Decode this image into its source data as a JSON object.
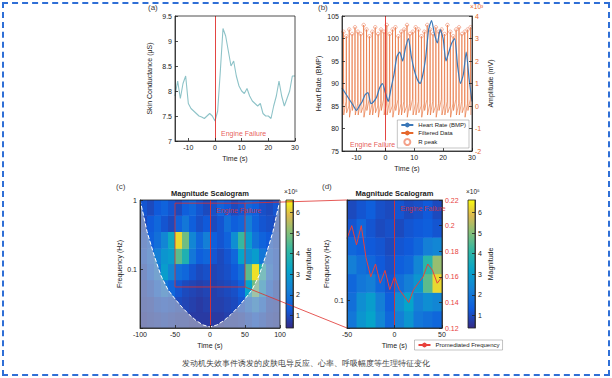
{
  "caption": "发动机失效事件诱发的皮肤电导反应、心率、呼吸幅度等生理特征变化",
  "chart_data": [
    {
      "panel": "(a)",
      "type": "line",
      "xlabel": "Time (s)",
      "ylabel": "Skin Conductance (μS)",
      "x": [
        -15,
        -14,
        -13,
        -12,
        -11,
        -10,
        -9,
        -8,
        -7,
        -6,
        -5,
        -4,
        -3,
        -2,
        -1,
        0,
        1,
        2,
        3,
        4,
        5,
        6,
        7,
        8,
        9,
        10,
        11,
        12,
        13,
        14,
        15,
        16,
        17,
        18,
        19,
        20,
        21,
        22,
        23,
        24,
        25,
        26,
        27,
        28,
        29,
        30
      ],
      "values": [
        7.9,
        8.2,
        7.85,
        8.15,
        8.3,
        7.75,
        7.65,
        7.6,
        7.55,
        7.5,
        7.48,
        7.45,
        7.5,
        7.55,
        7.5,
        7.4,
        7.6,
        8.4,
        9.25,
        9.1,
        8.8,
        8.5,
        8.6,
        8.3,
        8.1,
        8.0,
        7.95,
        8.05,
        7.9,
        7.8,
        7.75,
        7.7,
        7.75,
        7.55,
        7.5,
        7.5,
        7.45,
        7.7,
        7.9,
        8.2,
        7.9,
        7.7,
        7.85,
        8.0,
        8.3,
        8.3
      ],
      "color": "#8ec3c8",
      "xlim": [
        -15,
        30
      ],
      "xticks": [
        -10,
        0,
        10,
        20,
        30
      ],
      "ylim": [
        7,
        9.5
      ],
      "yticks": [
        7,
        7.5,
        8,
        8.5,
        9,
        9.5
      ],
      "grid": false,
      "annotations": [
        {
          "text": "Engine Failure",
          "x": 0
        }
      ]
    },
    {
      "panel": "(b)",
      "type": "line",
      "xlabel": "Time (s)",
      "ylabel": "Heart Rate (BMP)",
      "y2label": "Amplitude (mV)",
      "y2_multiplier": "×10³",
      "xlim": [
        -15,
        30
      ],
      "xticks": [
        -10,
        0,
        10,
        20,
        30
      ],
      "ylim": [
        75,
        105
      ],
      "yticks": [
        75,
        80,
        85,
        90,
        95,
        100,
        105
      ],
      "y2lim": [
        -2,
        4
      ],
      "y2ticks": [
        -2,
        -1,
        0,
        1,
        2,
        3,
        4
      ],
      "grid": false,
      "legend": "lower right",
      "annotations": [
        {
          "text": "Engine Failure",
          "x": 0
        }
      ],
      "series": [
        {
          "name": "Heart Rate (BMP)",
          "type": "line",
          "color": "#3b78b8",
          "x": [
            -15,
            -14,
            -13,
            -12,
            -11,
            -10,
            -9,
            -8,
            -7,
            -6,
            -5,
            -4,
            -3,
            -2,
            -1,
            0,
            1,
            2,
            3,
            4,
            5,
            6,
            7,
            8,
            9,
            10,
            11,
            12,
            13,
            14,
            15,
            16,
            17,
            18,
            19,
            20,
            21,
            22,
            23,
            24,
            25,
            26,
            27,
            28,
            29,
            30
          ],
          "values": [
            89,
            88,
            87,
            86,
            85,
            84,
            85,
            86,
            87.5,
            88,
            85.5,
            86,
            87,
            89,
            90,
            88,
            86,
            89,
            92,
            96,
            97,
            95,
            98,
            100,
            96,
            93,
            91,
            90,
            92,
            96,
            102,
            104,
            101,
            99,
            102,
            100,
            95,
            97,
            99,
            100,
            94,
            90,
            92,
            97,
            91,
            86
          ]
        },
        {
          "name": "Filtered Data",
          "type": "line",
          "color": "#e5672c",
          "axis": "y2",
          "x": [
            -14.6,
            -14.5,
            -14.4,
            -13.6,
            -13.5,
            -13.4,
            -12.6,
            -12.5,
            -12.4,
            -11.6,
            -11.5,
            -11.4,
            -10.6,
            -10.5,
            -10.4,
            -9.6,
            -9.5,
            -9.4,
            -8.6,
            -8.5,
            -8.4,
            -7.6,
            -7.5,
            -7.4,
            -6.6,
            -6.5,
            -6.4,
            -5.6,
            -5.5,
            -5.4,
            -4.6,
            -4.5,
            -4.4,
            -3.6,
            -3.5,
            -3.4,
            -2.6,
            -2.5,
            -2.4,
            -1.6,
            -1.5,
            -1.4,
            -0.6,
            -0.5,
            -0.4,
            0.4,
            0.5,
            0.6,
            1.4,
            1.5,
            1.6,
            2.4,
            2.5,
            2.6,
            3.4,
            3.5,
            3.6,
            4.4,
            4.5,
            4.6,
            5.4,
            5.5,
            5.6,
            6.4,
            6.5,
            6.6,
            7.4,
            7.5,
            7.6,
            8.4,
            8.5,
            8.6,
            9.4,
            9.5,
            9.6,
            10.4,
            10.5,
            10.6,
            11.4,
            11.5,
            11.6,
            12.4,
            12.5,
            12.6,
            13.4,
            13.5,
            13.6,
            14.4,
            14.5,
            14.6,
            15.4,
            15.5,
            15.6,
            16.4,
            16.5,
            16.6,
            17.4,
            17.5,
            17.6,
            18.4,
            18.5,
            18.6,
            19.4,
            19.5,
            19.6,
            20.4,
            20.5,
            20.6,
            21.4,
            21.5,
            21.6,
            22.4,
            22.5,
            22.6,
            23.4,
            23.5,
            23.6,
            24.4,
            24.5,
            24.6,
            25.4,
            25.5,
            25.6,
            26.4,
            26.5,
            26.6,
            27.4,
            27.5,
            27.6,
            28.4,
            28.5,
            28.6,
            29.4,
            29.5,
            29.6
          ],
          "values": [
            0.1,
            3.3,
            -0.4,
            0.2,
            3.1,
            -0.3,
            0,
            3.4,
            -0.5,
            0.1,
            3.2,
            -0.2,
            0.3,
            3.5,
            -0.4,
            0.1,
            3.3,
            -0.4,
            0.2,
            3.2,
            -0.3,
            0,
            3.6,
            -0.5,
            0.1,
            3.4,
            -0.2,
            0.3,
            3.1,
            -0.4,
            0.1,
            3.3,
            -0.4,
            0.2,
            3.5,
            -0.3,
            0,
            3.2,
            -0.5,
            0.1,
            3.4,
            -0.2,
            0.3,
            3.3,
            -0.4,
            0.1,
            3.6,
            -0.4,
            0.2,
            3.2,
            -0.3,
            0,
            3.4,
            -0.5,
            0.1,
            3.5,
            -0.2,
            0.3,
            3.1,
            -0.4,
            0.1,
            3.3,
            -0.4,
            0.2,
            3.4,
            -0.3,
            0,
            3.6,
            -0.5,
            0.1,
            3.2,
            -0.2,
            0.3,
            3.3,
            -0.4,
            0.1,
            3.5,
            -0.4,
            0.2,
            3.4,
            -0.3,
            0,
            3.1,
            -0.5,
            0.1,
            3.3,
            -0.2,
            0.3,
            3.6,
            -0.4,
            0.1,
            3.4,
            -0.4,
            0.2,
            3.2,
            -0.3,
            0,
            3.5,
            -0.5,
            0.1,
            3.3,
            -0.2,
            0.3,
            3.4,
            -0.4,
            0.1,
            3.2,
            -0.4,
            0.2,
            3.6,
            -0.3,
            0,
            3.3,
            -0.5,
            0.1,
            3.1,
            -0.2,
            0.3,
            3.4,
            -0.4,
            0.1,
            3.5,
            -0.4,
            0.2,
            3.2,
            -0.3,
            0,
            3.3,
            -0.5,
            0.1,
            3.4,
            -0.2,
            0.3,
            3.5,
            -0.4
          ]
        },
        {
          "name": "R peak",
          "type": "scatter",
          "marker": "circle",
          "color": "#f08a6c",
          "axis": "y2",
          "x": [
            -14.5,
            -13.5,
            -12.5,
            -11.5,
            -10.5,
            -9.5,
            -8.5,
            -7.5,
            -6.5,
            -5.5,
            -4.5,
            -3.5,
            -2.5,
            -1.5,
            -0.5,
            0.5,
            1.5,
            2.5,
            3.5,
            4.5,
            5.5,
            6.5,
            7.5,
            8.5,
            9.5,
            10.5,
            11.5,
            12.5,
            13.5,
            14.5,
            15.5,
            16.5,
            17.5,
            18.5,
            19.5,
            20.5,
            21.5,
            22.5,
            23.5,
            24.5,
            25.5,
            26.5,
            27.5,
            28.5,
            29.5
          ],
          "values": [
            3.3,
            3.1,
            3.4,
            3.2,
            3.5,
            3.3,
            3.2,
            3.6,
            3.4,
            3.1,
            3.3,
            3.5,
            3.2,
            3.4,
            3.3,
            3.6,
            3.2,
            3.4,
            3.5,
            3.1,
            3.3,
            3.4,
            3.6,
            3.2,
            3.3,
            3.5,
            3.4,
            3.1,
            3.3,
            3.6,
            3.4,
            3.2,
            3.5,
            3.3,
            3.4,
            3.2,
            3.6,
            3.3,
            3.1,
            3.4,
            3.5,
            3.2,
            3.3,
            3.4,
            3.5
          ]
        }
      ]
    },
    {
      "panel": "(c)",
      "type": "heatmap",
      "title": "Magnitude Scalogram",
      "xlabel": "Time (s)",
      "ylabel": "Frequency (Hz)",
      "log": "y",
      "xlim": [
        -100,
        100
      ],
      "xticks": [
        -100,
        -50,
        0,
        50,
        100
      ],
      "ylim": [
        0.014,
        1
      ],
      "yticks": [
        0.1,
        1
      ],
      "grid": false,
      "annotations": [
        {
          "text": "Engine Failure",
          "x": 0
        }
      ],
      "heatmap": {
        "x_edges": [
          -100,
          -90,
          -80,
          -70,
          -60,
          -50,
          -40,
          -30,
          -20,
          -10,
          0,
          10,
          20,
          30,
          40,
          50,
          60,
          70,
          80,
          90,
          100
        ],
        "y_edges": [
          0.014,
          0.024,
          0.04,
          0.07,
          0.12,
          0.2,
          0.35,
          0.6,
          1
        ],
        "values": [
          [
            0.7,
            0.8,
            0.9,
            1.0,
            0.9,
            0.8,
            0.8,
            0.7,
            0.7,
            0.7,
            0.7,
            0.7,
            0.8,
            0.8,
            0.9,
            1.1,
            1.3,
            1.1,
            0.9,
            0.8
          ],
          [
            0.8,
            0.9,
            1.1,
            1.2,
            1.1,
            1.0,
            0.9,
            0.8,
            0.7,
            0.8,
            0.8,
            0.8,
            0.9,
            1.0,
            1.2,
            1.7,
            2.2,
            1.6,
            1.0,
            0.9
          ],
          [
            0.9,
            1.1,
            1.5,
            2.0,
            1.6,
            1.2,
            1.0,
            0.9,
            0.8,
            0.9,
            0.8,
            0.9,
            1.0,
            1.1,
            1.4,
            3.2,
            4.8,
            2.8,
            1.4,
            1.0
          ],
          [
            1.0,
            1.4,
            2.0,
            3.0,
            2.4,
            1.8,
            1.6,
            1.2,
            1.0,
            1.1,
            0.9,
            1.0,
            1.1,
            1.3,
            1.8,
            4.6,
            6.3,
            3.8,
            1.8,
            1.2
          ],
          [
            1.2,
            1.6,
            2.2,
            2.8,
            3.0,
            4.6,
            3.8,
            2.0,
            1.4,
            1.6,
            1.2,
            1.0,
            1.2,
            1.6,
            3.2,
            2.6,
            3.0,
            2.0,
            1.5,
            1.2
          ],
          [
            1.1,
            1.4,
            1.8,
            2.4,
            3.4,
            6.2,
            4.8,
            2.4,
            1.6,
            2.2,
            1.4,
            1.2,
            1.5,
            2.6,
            4.2,
            3.0,
            1.9,
            1.5,
            1.3,
            1.1
          ],
          [
            1.0,
            1.3,
            1.6,
            1.2,
            1.0,
            1.5,
            2.0,
            1.4,
            1.1,
            1.3,
            1.0,
            1.2,
            1.8,
            1.4,
            1.6,
            2.2,
            1.5,
            1.2,
            1.1,
            1.0
          ],
          [
            1.2,
            1.0,
            1.3,
            1.5,
            1.2,
            1.0,
            1.4,
            1.6,
            1.2,
            1.0,
            1.1,
            1.5,
            1.3,
            1.0,
            1.2,
            1.6,
            1.4,
            1.1,
            1.0,
            1.2
          ]
        ]
      },
      "colorbar": {
        "label": "Magnitude",
        "multiplier": "×10⁵",
        "range": [
          0.4,
          6.6
        ],
        "ticks": [
          1,
          2,
          3,
          4,
          5,
          6
        ]
      },
      "cone_of_influence": {
        "x": [
          -100,
          -95,
          -90,
          -80,
          -70,
          -60,
          -50,
          -40,
          -30,
          -20,
          -10,
          0,
          10,
          20,
          30,
          40,
          50,
          60,
          70,
          80,
          90,
          95,
          100
        ],
        "values": [
          1,
          0.6,
          0.35,
          0.16,
          0.08,
          0.05,
          0.037,
          0.028,
          0.022,
          0.018,
          0.0155,
          0.0145,
          0.0155,
          0.018,
          0.022,
          0.028,
          0.037,
          0.05,
          0.08,
          0.16,
          0.35,
          0.6,
          1
        ]
      }
    },
    {
      "panel": "(d)",
      "type": "heatmap",
      "title": "Magnitude Scalogram",
      "xlabel": "Time (s)",
      "ylabel": "Frequency (Hz)",
      "log": "y",
      "xlim": [
        -50,
        50
      ],
      "xticks": [
        -50,
        0,
        50
      ],
      "ylim": [
        0.055,
        0.9
      ],
      "yticks": [
        0.1
      ],
      "y2lim": [
        0.12,
        0.22
      ],
      "y2ticks": [
        0.12,
        0.14,
        0.16,
        0.18,
        0.2,
        0.22
      ],
      "grid": false,
      "legend": "below",
      "annotations": [
        {
          "text": "Engine Failure",
          "x": 0
        }
      ],
      "heatmap": {
        "x_edges": [
          -50,
          -40,
          -30,
          -20,
          -10,
          0,
          10,
          20,
          30,
          40,
          50
        ],
        "y_edges": [
          0.055,
          0.08,
          0.12,
          0.18,
          0.27,
          0.4,
          0.6,
          0.9
        ],
        "values": [
          [
            2.0,
            2.8,
            3.2,
            2.4,
            1.6,
            2.2,
            2.8,
            2.0,
            1.8,
            1.6
          ],
          [
            1.8,
            2.6,
            3.0,
            2.2,
            1.4,
            2.6,
            3.2,
            2.2,
            2.6,
            2.4
          ],
          [
            1.6,
            2.0,
            2.2,
            1.6,
            1.2,
            1.8,
            2.2,
            2.8,
            4.6,
            6.2
          ],
          [
            2.2,
            1.8,
            1.6,
            1.3,
            1.1,
            1.4,
            1.6,
            2.4,
            4.0,
            5.2
          ],
          [
            1.6,
            1.4,
            1.3,
            1.2,
            1.0,
            1.2,
            1.3,
            1.6,
            2.2,
            2.4
          ],
          [
            1.2,
            1.6,
            1.2,
            1.0,
            1.1,
            1.0,
            1.2,
            1.3,
            1.4,
            1.2
          ],
          [
            1.0,
            1.2,
            1.4,
            1.1,
            1.0,
            1.2,
            1.0,
            1.1,
            1.3,
            1.0
          ]
        ]
      },
      "colorbar": {
        "label": "Magnitude",
        "multiplier": "×10⁵",
        "range": [
          0.4,
          6.6
        ],
        "ticks": [
          1,
          2,
          3,
          4,
          5,
          6
        ]
      },
      "series": [
        {
          "name": "Promediated Frequency",
          "type": "line",
          "color": "#e8413c",
          "axis": "y2",
          "x": [
            -50,
            -45,
            -40,
            -35,
            -30,
            -25,
            -20,
            -15,
            -10,
            -5,
            0,
            5,
            10,
            15,
            20,
            25,
            30,
            35,
            40,
            45,
            50
          ],
          "values": [
            0.19,
            0.2,
            0.185,
            0.2,
            0.175,
            0.16,
            0.17,
            0.155,
            0.165,
            0.15,
            0.16,
            0.15,
            0.145,
            0.14,
            0.15,
            0.155,
            0.16,
            0.17,
            0.165,
            0.155,
            0.16
          ]
        }
      ]
    }
  ]
}
